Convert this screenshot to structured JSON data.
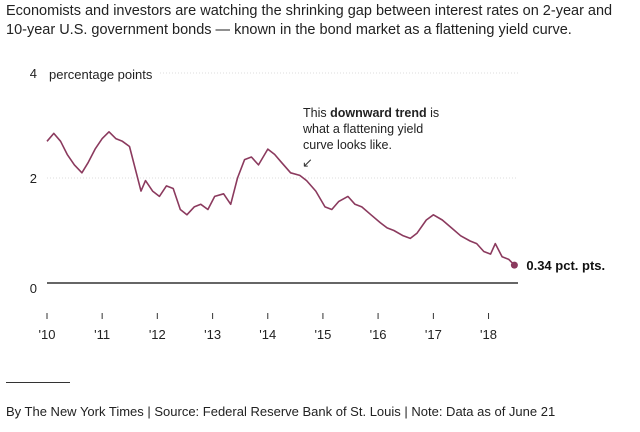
{
  "intro": "Economists and investors are watching the shrinking gap between interest rates on 2-year and 10-year U.S. government bonds — known in the bond market as a flattening yield curve.",
  "chart_data": {
    "type": "line",
    "ylabel": "percentage points",
    "ylim": [
      0,
      4
    ],
    "yticks": [
      {
        "value": 4,
        "label": "4"
      },
      {
        "value": 2,
        "label": "2"
      },
      {
        "value": 0,
        "label": "0"
      }
    ],
    "xlim": [
      "2010-01-01",
      "2018-07-15"
    ],
    "xticks": [
      {
        "value": "2010-01-01",
        "label": "'10"
      },
      {
        "value": "2011-01-01",
        "label": "'11"
      },
      {
        "value": "2012-01-01",
        "label": "'12"
      },
      {
        "value": "2013-01-01",
        "label": "'13"
      },
      {
        "value": "2014-01-01",
        "label": "'14"
      },
      {
        "value": "2015-01-01",
        "label": "'15"
      },
      {
        "value": "2016-01-01",
        "label": "'16"
      },
      {
        "value": "2017-01-01",
        "label": "'17"
      },
      {
        "value": "2018-01-01",
        "label": "'18"
      }
    ],
    "series": [
      {
        "color": "#8b3a5e",
        "points": [
          [
            "2010-01-01",
            2.7
          ],
          [
            "2010-02-15",
            2.85
          ],
          [
            "2010-04-01",
            2.7
          ],
          [
            "2010-05-15",
            2.45
          ],
          [
            "2010-07-01",
            2.25
          ],
          [
            "2010-08-20",
            2.1
          ],
          [
            "2010-10-01",
            2.3
          ],
          [
            "2010-11-15",
            2.55
          ],
          [
            "2011-01-01",
            2.75
          ],
          [
            "2011-02-15",
            2.88
          ],
          [
            "2011-04-01",
            2.75
          ],
          [
            "2011-05-15",
            2.7
          ],
          [
            "2011-07-01",
            2.6
          ],
          [
            "2011-08-15",
            2.1
          ],
          [
            "2011-09-15",
            1.75
          ],
          [
            "2011-10-15",
            1.95
          ],
          [
            "2011-12-01",
            1.75
          ],
          [
            "2012-01-15",
            1.65
          ],
          [
            "2012-03-01",
            1.85
          ],
          [
            "2012-04-15",
            1.8
          ],
          [
            "2012-06-01",
            1.4
          ],
          [
            "2012-07-15",
            1.3
          ],
          [
            "2012-09-01",
            1.45
          ],
          [
            "2012-10-15",
            1.5
          ],
          [
            "2012-12-01",
            1.4
          ],
          [
            "2013-01-15",
            1.65
          ],
          [
            "2013-03-15",
            1.7
          ],
          [
            "2013-05-01",
            1.5
          ],
          [
            "2013-06-15",
            2.0
          ],
          [
            "2013-08-01",
            2.35
          ],
          [
            "2013-09-15",
            2.4
          ],
          [
            "2013-11-01",
            2.25
          ],
          [
            "2014-01-01",
            2.55
          ],
          [
            "2014-02-15",
            2.45
          ],
          [
            "2014-04-01",
            2.3
          ],
          [
            "2014-06-01",
            2.1
          ],
          [
            "2014-08-01",
            2.05
          ],
          [
            "2014-09-15",
            1.95
          ],
          [
            "2014-11-15",
            1.75
          ],
          [
            "2015-01-15",
            1.45
          ],
          [
            "2015-03-01",
            1.4
          ],
          [
            "2015-04-15",
            1.55
          ],
          [
            "2015-06-15",
            1.65
          ],
          [
            "2015-08-01",
            1.5
          ],
          [
            "2015-09-15",
            1.45
          ],
          [
            "2015-11-15",
            1.3
          ],
          [
            "2016-01-15",
            1.15
          ],
          [
            "2016-03-01",
            1.05
          ],
          [
            "2016-04-15",
            1.0
          ],
          [
            "2016-06-15",
            0.9
          ],
          [
            "2016-08-01",
            0.85
          ],
          [
            "2016-09-15",
            0.95
          ],
          [
            "2016-11-15",
            1.2
          ],
          [
            "2017-01-01",
            1.3
          ],
          [
            "2017-03-01",
            1.2
          ],
          [
            "2017-05-01",
            1.05
          ],
          [
            "2017-07-01",
            0.9
          ],
          [
            "2017-09-01",
            0.8
          ],
          [
            "2017-10-15",
            0.75
          ],
          [
            "2017-12-01",
            0.6
          ],
          [
            "2018-01-15",
            0.55
          ],
          [
            "2018-02-15",
            0.75
          ],
          [
            "2018-04-01",
            0.5
          ],
          [
            "2018-05-15",
            0.45
          ],
          [
            "2018-06-21",
            0.34
          ]
        ]
      }
    ],
    "end_label": "0.34 pct. pts.",
    "annotation": {
      "prefix": "This ",
      "bold": "downward trend",
      "suffix": " is",
      "line2": "what a flattening yield",
      "line3": "curve looks like.",
      "arrow": "↙"
    }
  },
  "footer": "By The New York Times | Source: Federal Reserve Bank of St. Louis | Note: Data as of June 21"
}
